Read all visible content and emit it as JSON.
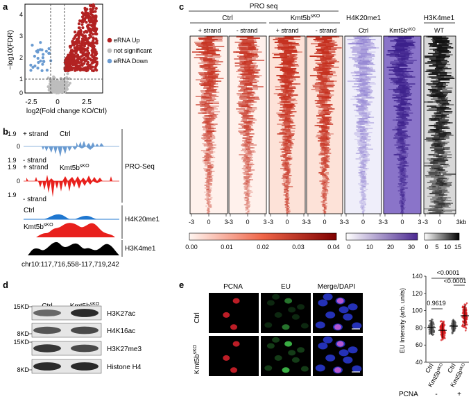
{
  "panel_labels": {
    "a": "a",
    "b": "b",
    "c": "c",
    "d": "d",
    "e": "e"
  },
  "colors": {
    "up": "#b22222",
    "down": "#6a9bd1",
    "ns": "#bdbdbd",
    "pro_red": "#b2182b",
    "h4k20": "#5e3c99",
    "blue_track": "#1f77d0",
    "red_track": "#e8201c"
  },
  "panel_a": {
    "chart_data": {
      "type": "scatter",
      "title": "",
      "xlabel": "log2(Fold change KO/Ctrl)",
      "ylabel": "−log10(FDR)",
      "xlim": [
        -3,
        4
      ],
      "ylim": [
        0,
        4
      ],
      "xticks": [
        "-2.5",
        "0",
        "2.5"
      ],
      "yticks": [
        "0",
        "1",
        "2",
        "3",
        "4"
      ],
      "thresholds": {
        "x": [
          -0.6,
          0.6
        ],
        "y": 1
      },
      "series": [
        {
          "name": "eRNA Up",
          "color": "#b22222",
          "count": 500,
          "x_range": [
            0.6,
            3.5
          ],
          "y_range": [
            1,
            4
          ]
        },
        {
          "name": "not significant",
          "color": "#bdbdbd",
          "count": 350,
          "x_range": [
            -1.8,
            1.8
          ],
          "y_range": [
            0,
            1
          ]
        },
        {
          "name": "eRNA Down",
          "color": "#6a9bd1",
          "count": 28,
          "x_range": [
            -2.5,
            -0.6
          ],
          "y_range": [
            1,
            2.3
          ]
        }
      ],
      "legend": [
        "eRNA Up",
        "not significant",
        "eRNA Down"
      ]
    }
  },
  "panel_b": {
    "ctrl_label": "Ctrl",
    "ko_label": "Kmt5b",
    "ko_sup": "sKO",
    "plus_strand": "+ strand",
    "minus_strand": "- strand",
    "scale_pos": "1.9",
    "scale_zero": "0",
    "scale_neg": "1.9",
    "pro_label": "PRO-Seq",
    "h4k20_label": "H4K20me1",
    "h3k4_label": "H3K4me1",
    "h4_ctrl": "Ctrl",
    "coord": "chr10:117,716,558-117,719,242"
  },
  "panel_c": {
    "pro_header": "PRO seq",
    "ctrl_label": "Ctrl",
    "ko_label": "Kmt5b",
    "ko_sup": "sKO",
    "plus": "+ strand",
    "minus": "- strand",
    "h4k20_header": "H4K20me1",
    "h3k4_header": "H3K4me1",
    "h4_ctrl": "Ctrl",
    "wt_label": "WT",
    "xtick_left": "-3",
    "xtick_mid": "0",
    "xtick_right": "3",
    "kb_label": "3kb",
    "cbar_pro": [
      "0.00",
      "0.01",
      "0.02",
      "0.03",
      "0.04"
    ],
    "cbar_h4k20": [
      "0",
      "10",
      "20",
      "30"
    ],
    "cbar_h3k4": [
      "0",
      "5",
      "10",
      "15"
    ]
  },
  "panel_d": {
    "ctrl_label": "Ctrl",
    "ko_label": "Kmt5b",
    "ko_sup": "sKO",
    "rows": [
      {
        "mw": "15KD",
        "label": "H3K27ac"
      },
      {
        "mw": "8KD",
        "label": "H4K16ac"
      },
      {
        "mw": "15KD",
        "label": "H3K27me3"
      },
      {
        "mw": "8KD",
        "label": "Histone H4"
      }
    ]
  },
  "panel_e": {
    "col_pcna": "PCNA",
    "col_eu": "EU",
    "col_merge": "Merge/DAPI",
    "row_ctrl": "Ctrl",
    "row_ko": "Kmt5b",
    "row_ko_sup": "sKO",
    "chart_data": {
      "type": "scatter",
      "ylabel": "EU Intensity (arb. units)",
      "ylim": [
        40,
        140
      ],
      "yticks": [
        "40",
        "60",
        "80",
        "100",
        "120",
        "140"
      ],
      "categories": [
        "Ctrl",
        "Kmt5b",
        "Ctrl",
        "Kmt5b"
      ],
      "cat_sup": [
        "",
        "sKO",
        "",
        "sKO"
      ],
      "pcna_label": "PCNA",
      "pcna_groups": [
        "-",
        "+"
      ],
      "series": [
        {
          "name": "Ctrl PCNA-",
          "mean": 80,
          "sd": 8,
          "n": 120,
          "color": "#555555"
        },
        {
          "name": "Kmt5b sKO PCNA-",
          "mean": 77,
          "sd": 9,
          "n": 140,
          "color": "#d7191c"
        },
        {
          "name": "Ctrl PCNA+",
          "mean": 82,
          "sd": 7,
          "n": 100,
          "color": "#555555"
        },
        {
          "name": "Kmt5b sKO PCNA+",
          "mean": 94,
          "sd": 12,
          "n": 150,
          "color": "#d7191c"
        }
      ],
      "pvalues": [
        "0.9619",
        "<0.0001",
        "<0.0001"
      ]
    }
  }
}
